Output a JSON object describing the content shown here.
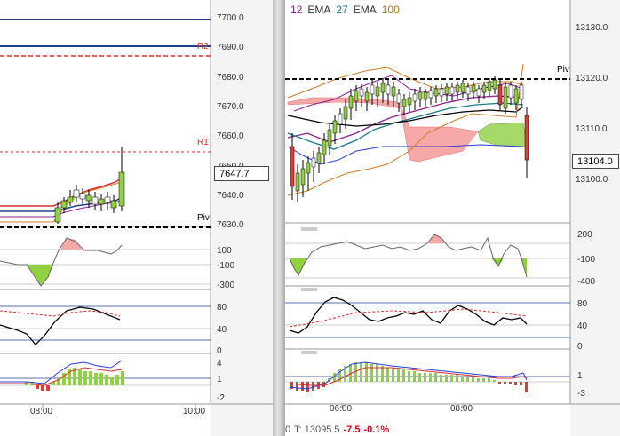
{
  "left_chart": {
    "price_ticks": [
      "7700.0",
      "7690.0",
      "7680.0",
      "7670.0",
      "7660.0",
      "7650.0",
      "7640.0",
      "7630.0"
    ],
    "current_price": "7647.7",
    "pivot_labels": {
      "r2": "R2",
      "r1": "R1",
      "piv": "Piv"
    },
    "cci_ticks": [
      "100",
      "-100",
      "-300"
    ],
    "stoch_ticks": [
      "80",
      "40",
      "0"
    ],
    "macd_ticks": [
      "4",
      "1",
      "-2"
    ],
    "time_ticks": [
      "08:00",
      "10:00"
    ]
  },
  "right_chart": {
    "legend": [
      {
        "text": "12",
        "color": "#8e1f8e"
      },
      {
        "text": "EMA",
        "color": "#333333"
      },
      {
        "text": "27",
        "color": "#1a7a8a"
      },
      {
        "text": "EMA",
        "color": "#333333"
      },
      {
        "text": "100",
        "color": "#b07020"
      }
    ],
    "price_ticks": [
      "13130.0",
      "13120.0",
      "13110.0",
      "13100.0"
    ],
    "current_price": "13104.0",
    "pivot_label": "Piv",
    "cci_ticks": [
      "200",
      "-100",
      "-400"
    ],
    "stoch_ticks": [
      "80",
      "40",
      "0"
    ],
    "macd_ticks": [
      "1",
      "-3"
    ],
    "time_ticks": [
      "06:00",
      "08:00"
    ]
  },
  "status_bar": {
    "prefix": "0",
    "last_label": "T: 13095.5",
    "change": "-7.5",
    "change_pct": "-0.1%"
  },
  "colors": {
    "bull_candle": "#8fd13f",
    "bear_candle": "#e53935",
    "cloud_bear": "#f7a8a8",
    "cloud_bull": "#a6d86a",
    "pivot_blue": "#1f3f8f",
    "pivot_red": "#d9302a"
  }
}
